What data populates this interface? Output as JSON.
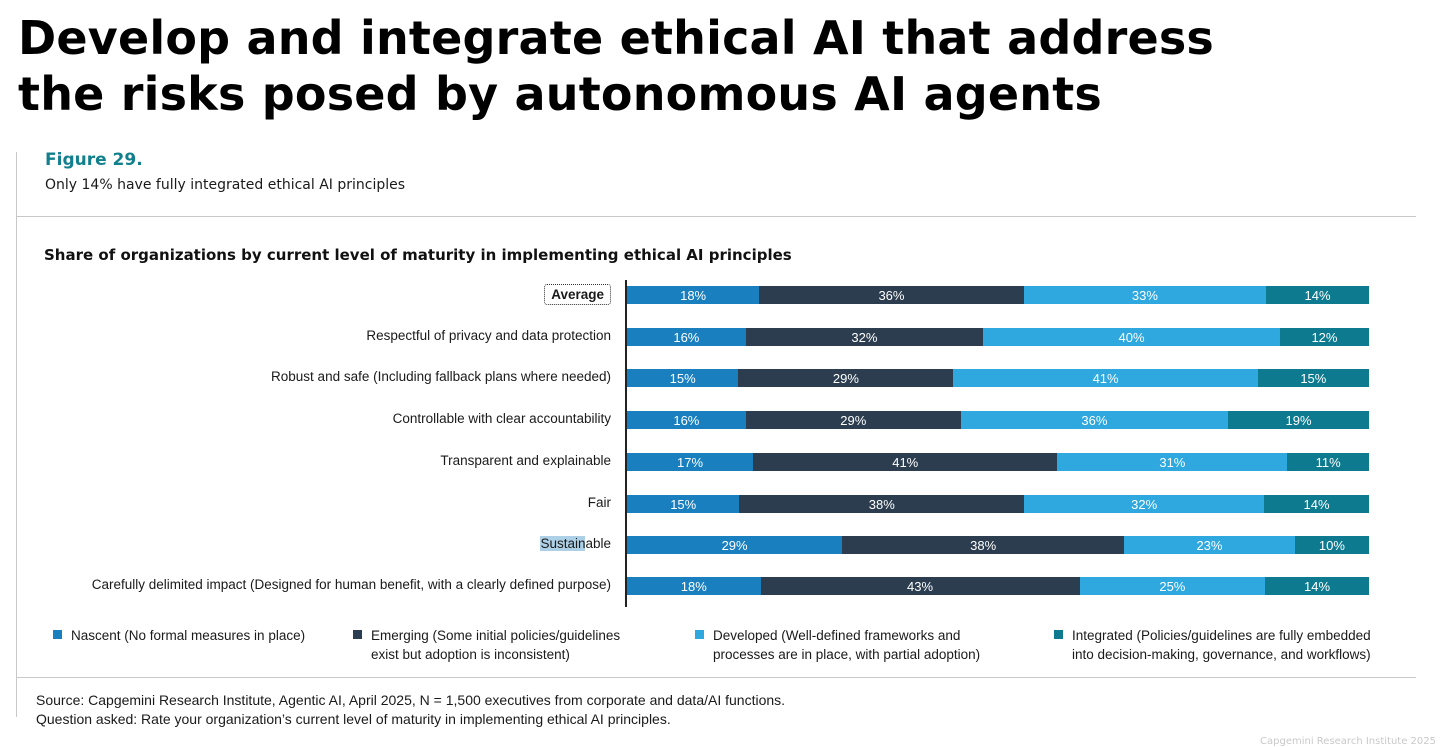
{
  "headline": {
    "line1": "Develop and integrate ethical AI that address",
    "line2": "the risks posed by autonomous AI agents"
  },
  "figure": {
    "number": "Figure 29.",
    "subtitle": "Only 14% have fully integrated ethical AI principles"
  },
  "colors": {
    "nascent": "#1a7fbf",
    "emerging": "#2b3d4f",
    "developed": "#2ea8de",
    "integrated": "#0e7a8f",
    "accent": "#12808c"
  },
  "chart_data": {
    "type": "bar",
    "orientation": "horizontal",
    "stacked": true,
    "title": "Share of organizations by current level of maturity in implementing ethical AI principles",
    "categories": [
      "Average",
      "Respectful of privacy and data protection",
      "Robust and safe (Including fallback plans where needed)",
      "Controllable with clear accountability",
      "Transparent and explainable",
      "Fair",
      "Sustainable",
      "Carefully delimited impact (Designed for human benefit, with a clearly defined purpose)"
    ],
    "series": [
      {
        "name": "Nascent",
        "key": "nascent",
        "values": [
          18,
          16,
          15,
          16,
          17,
          15,
          29,
          18
        ]
      },
      {
        "name": "Emerging",
        "key": "emerging",
        "values": [
          36,
          32,
          29,
          29,
          41,
          38,
          38,
          43
        ]
      },
      {
        "name": "Developed",
        "key": "developed",
        "values": [
          33,
          40,
          41,
          36,
          31,
          32,
          23,
          25
        ]
      },
      {
        "name": "Integrated",
        "key": "integrated",
        "values": [
          14,
          12,
          15,
          19,
          11,
          14,
          10,
          14
        ]
      }
    ],
    "value_suffix": "%",
    "xlim": [
      0,
      100
    ],
    "legend": [
      {
        "key": "nascent",
        "line1": "Nascent (No formal measures in place)",
        "line2": ""
      },
      {
        "key": "emerging",
        "line1": "Emerging (Some initial policies/guidelines",
        "line2": "exist but adoption is inconsistent)"
      },
      {
        "key": "developed",
        "line1": "Developed (Well-defined frameworks and",
        "line2": "processes are in place, with partial adoption)"
      },
      {
        "key": "integrated",
        "line1": "Integrated (Policies/guidelines are fully embedded",
        "line2": "into decision-making, governance, and workflows)"
      }
    ]
  },
  "source": {
    "line1": "Source: Capgemini Research Institute, Agentic AI, April 2025, N = 1,500 executives from corporate and data/AI functions.",
    "line2": "Question asked: Rate your organization’s current level of maturity in implementing ethical AI principles."
  },
  "watermark": "Capgemini Research Institute 2025"
}
